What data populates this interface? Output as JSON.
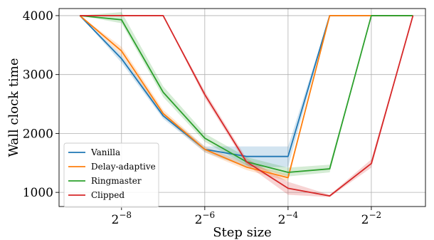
{
  "chart_data": {
    "type": "line",
    "x_scale": "log2",
    "x": [
      -9,
      -8,
      -7,
      -6,
      -5,
      -4,
      -3,
      -2,
      -1
    ],
    "x_ticks": [
      -8,
      -6,
      -4,
      -2
    ],
    "x_tick_base": "2",
    "xlim": [
      -9.5,
      -0.7
    ],
    "ylim": [
      760,
      4120
    ],
    "y_ticks": [
      1000,
      2000,
      3000,
      4000
    ],
    "xlabel": "Step size",
    "ylabel": "Wall clock time",
    "grid": true,
    "legend_position": "lower-left",
    "series": [
      {
        "name": "Vanilla",
        "color": "#1f77b4",
        "values": [
          4000,
          3270,
          2300,
          1730,
          1610,
          1610,
          4000,
          4000,
          4000
        ],
        "lower": [
          4000,
          3200,
          2250,
          1680,
          1430,
          1430,
          4000,
          4000,
          4000
        ],
        "upper": [
          4000,
          3330,
          2350,
          1780,
          1780,
          1780,
          4000,
          4000,
          4000
        ]
      },
      {
        "name": "Delay-adaptive",
        "color": "#ff7f0e",
        "values": [
          4000,
          3400,
          2340,
          1730,
          1430,
          1250,
          4000,
          4000,
          4000
        ],
        "lower": [
          4000,
          3330,
          2290,
          1680,
          1380,
          1190,
          4000,
          4000,
          4000
        ],
        "upper": [
          4000,
          3470,
          2400,
          1780,
          1490,
          1310,
          4000,
          4000,
          4000
        ]
      },
      {
        "name": "Ringmaster",
        "color": "#2ca02c",
        "values": [
          4000,
          3930,
          2700,
          1920,
          1520,
          1340,
          1400,
          4000,
          4000
        ],
        "lower": [
          4000,
          3870,
          2620,
          1860,
          1460,
          1270,
          1340,
          4000,
          4000
        ],
        "upper": [
          4000,
          4060,
          2800,
          2000,
          1600,
          1420,
          1470,
          4000,
          4000
        ]
      },
      {
        "name": "Clipped",
        "color": "#d62728",
        "values": [
          4000,
          4000,
          4000,
          2660,
          1520,
          1070,
          940,
          1490,
          4000
        ],
        "lower": [
          4000,
          4000,
          4000,
          2600,
          1470,
          960,
          920,
          1420,
          4000
        ],
        "upper": [
          4000,
          4000,
          4000,
          2720,
          1580,
          1180,
          960,
          1560,
          4000
        ]
      }
    ]
  }
}
